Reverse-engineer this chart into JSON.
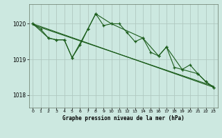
{
  "xlabel": "Graphe pression niveau de la mer (hPa)",
  "background_color": "#cce8e0",
  "plot_bg_color": "#cce8e0",
  "grid_color": "#b0c8c0",
  "line_color": "#1a5c1a",
  "xlim": [
    -0.5,
    23.5
  ],
  "ylim": [
    1017.65,
    1020.55
  ],
  "yticks": [
    1018,
    1019,
    1020
  ],
  "xticks": [
    0,
    1,
    2,
    3,
    4,
    5,
    6,
    7,
    8,
    9,
    10,
    11,
    12,
    13,
    14,
    15,
    16,
    17,
    18,
    19,
    20,
    21,
    22,
    23
  ],
  "series1_x": [
    0,
    1,
    2,
    3,
    4,
    5,
    6,
    7,
    8,
    9,
    10,
    11,
    12,
    13,
    14,
    15,
    16,
    17,
    18,
    19,
    20,
    21,
    22,
    23
  ],
  "series1_y": [
    1020.0,
    1019.85,
    1019.6,
    1019.55,
    1019.55,
    1019.05,
    1019.4,
    1019.85,
    1020.28,
    1019.95,
    1020.0,
    1020.0,
    1019.75,
    1019.5,
    1019.6,
    1019.2,
    1019.1,
    1019.35,
    1018.78,
    1018.72,
    1018.85,
    1018.6,
    1018.38,
    1018.22
  ],
  "series2_x": [
    0,
    2,
    3,
    4,
    5,
    7,
    8,
    10,
    14,
    16,
    17,
    19,
    21,
    22,
    23
  ],
  "series2_y": [
    1020.0,
    1019.6,
    1019.55,
    1019.55,
    1019.05,
    1019.85,
    1020.28,
    1020.0,
    1019.6,
    1019.1,
    1019.35,
    1018.72,
    1018.6,
    1018.38,
    1018.22
  ],
  "trend1_x": [
    0,
    23
  ],
  "trend1_y": [
    1020.0,
    1018.22
  ],
  "trend2_x": [
    0,
    23
  ],
  "trend2_y": [
    1019.97,
    1018.25
  ]
}
